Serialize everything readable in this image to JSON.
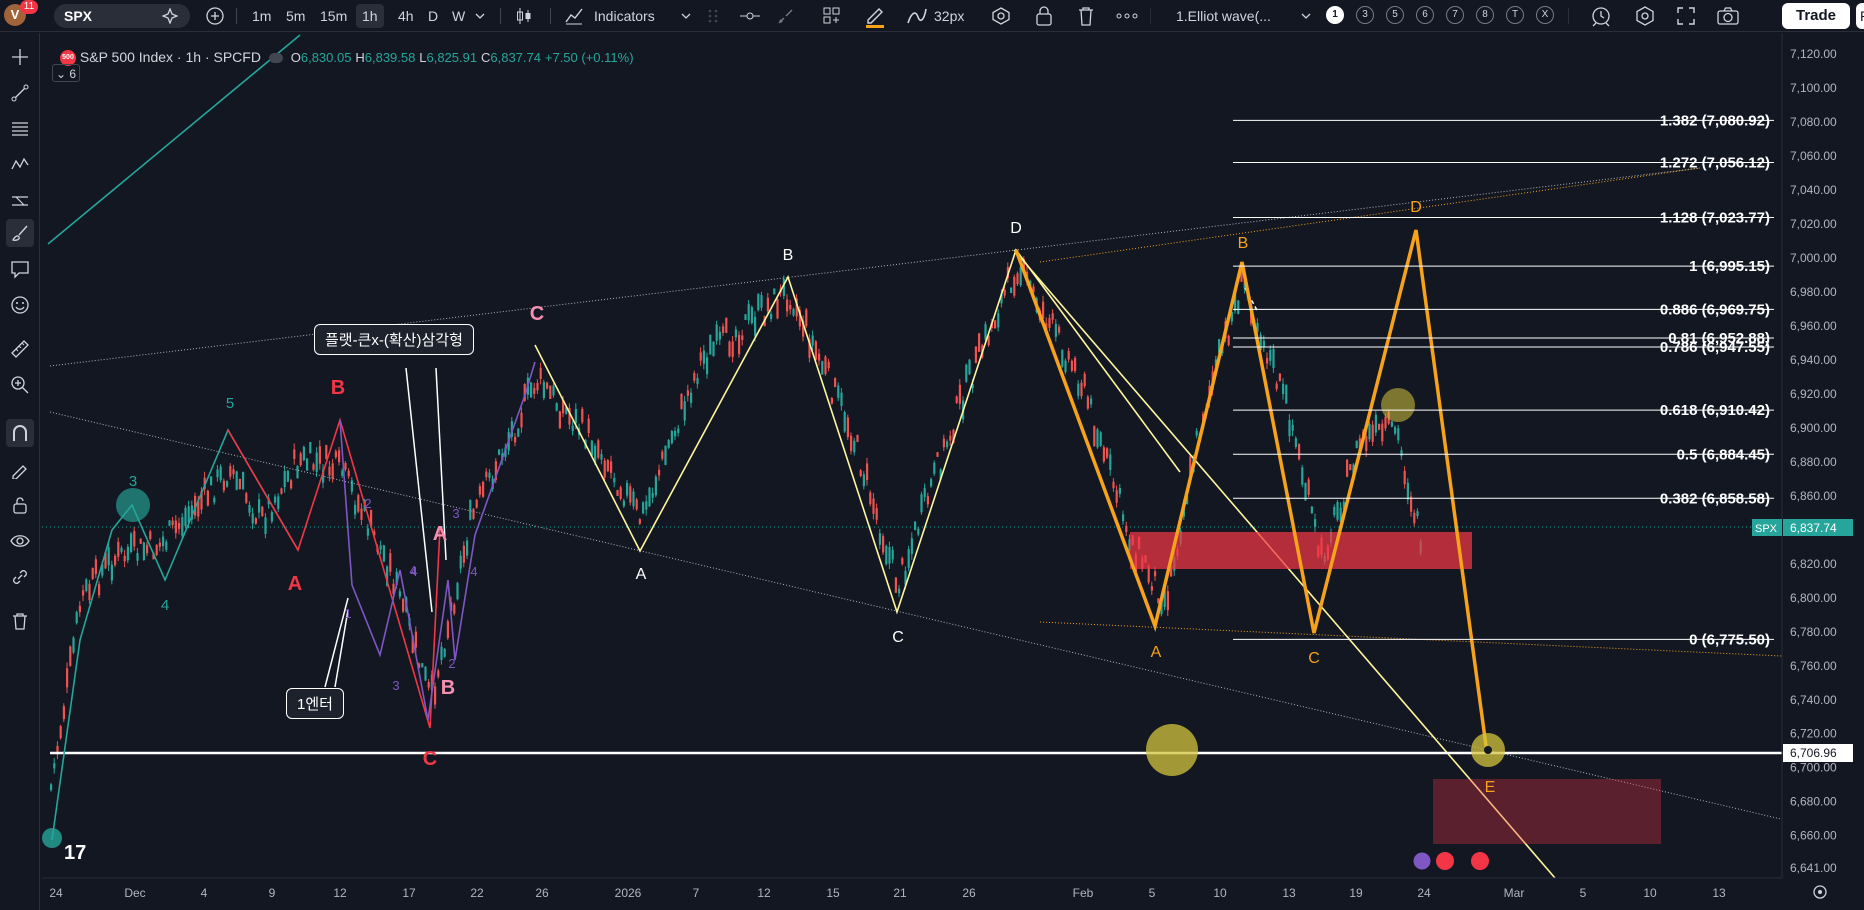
{
  "toolbar": {
    "avatar_letter": "V",
    "notif_count": "11",
    "symbol": "SPX",
    "intervals": [
      "1m",
      "5m",
      "15m",
      "1h",
      "4h",
      "D",
      "W"
    ],
    "active_interval": "1h",
    "indicators_label": "Indicators",
    "brush_size": "32px",
    "layout_name": "1.Elliot wave(...",
    "layout_slots": [
      "1",
      "3",
      "5",
      "6",
      "7",
      "8",
      "T",
      "X"
    ],
    "trade_label": "Trade",
    "publish_label": "Pub"
  },
  "legend": {
    "symbol_badge": "500",
    "title": "S&P 500 Index · 1h · SPCFD",
    "o_label": "O",
    "o": "6,830.05",
    "h_label": "H",
    "h": "6,839.58",
    "l_label": "L",
    "l": "6,825.91",
    "c_label": "C",
    "c": "6,837.74",
    "change": "+7.50 (+0.11%)",
    "indicator_count": "6"
  },
  "colors": {
    "bg": "#131722",
    "up": "#26a69a",
    "down": "#ef5350",
    "fib": "#ffffff",
    "orange_wave": "#f7a21b",
    "yellow_wave": "#fff59d",
    "red_wave": "#f23645",
    "purple_wave": "#7e57c2",
    "green_wave": "#26a69a"
  },
  "price_axis": {
    "labels": [
      "7,120.00",
      "7,100.00",
      "7,080.00",
      "7,060.00",
      "7,040.00",
      "7,020.00",
      "7,000.00",
      "6,980.00",
      "6,960.00",
      "6,940.00",
      "6,920.00",
      "6,900.00",
      "6,880.00",
      "6,860.00",
      "6,840.00",
      "6,820.00",
      "6,800.00",
      "6,780.00",
      "6,760.00",
      "6,740.00",
      "6,720.00",
      "6,700.00",
      "6,680.00",
      "6,660.00",
      "6,641.00"
    ],
    "last_symbol": "SPX",
    "last_price": "6,837.74",
    "crosshair_price": "6,706.96"
  },
  "time_axis": {
    "labels": [
      "24",
      "Dec",
      "4",
      "9",
      "12",
      "17",
      "22",
      "26",
      "2026",
      "7",
      "12",
      "15",
      "21",
      "26",
      "Feb",
      "5",
      "10",
      "13",
      "19",
      "24",
      "Mar",
      "5",
      "10",
      "13"
    ]
  },
  "fib_levels": [
    {
      "label": "1.382 (7,080.92)",
      "price": 7080.92
    },
    {
      "label": "1.272 (7,056.12)",
      "price": 7056.12
    },
    {
      "label": "1.128 (7,023.77)",
      "price": 7023.77
    },
    {
      "label": "1 (6,995.15)",
      "price": 6995.15
    },
    {
      "label": "0.886 (6,969.75)",
      "price": 6969.75
    },
    {
      "label": "0.81 (6,952.88)",
      "price": 6952.88
    },
    {
      "label": "0.786 (6,947.55)",
      "price": 6947.55
    },
    {
      "label": "0.618 (6,910.42)",
      "price": 6910.42
    },
    {
      "label": "0.5 (6,884.45)",
      "price": 6884.45
    },
    {
      "label": "0.382 (6,858.58)",
      "price": 6858.58
    },
    {
      "label": "0 (6,775.50)",
      "price": 6775.5
    }
  ],
  "wave_labels": {
    "green": [
      "3",
      "5",
      "4"
    ],
    "red": [
      "B",
      "A",
      "C"
    ],
    "purple": [
      "2",
      "1",
      "3",
      "4",
      "2",
      "3",
      "4",
      "4"
    ],
    "pink": [
      "C",
      "A",
      "B"
    ],
    "yellow": [
      "B",
      "A",
      "C",
      "D"
    ],
    "orange": [
      "B",
      "D",
      "A",
      "C",
      "E"
    ]
  },
  "annotations": {
    "flat_label": "플랫-큰x-(확산)삼각형",
    "entry_label": "1엔터"
  },
  "tv_logo": "17"
}
